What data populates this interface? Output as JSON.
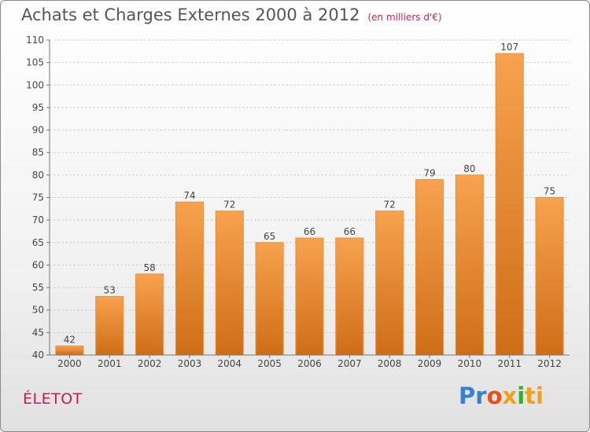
{
  "header": {
    "title": "Achats et Charges Externes 2000 à 2012",
    "unit": "(en milliers d'€)"
  },
  "footer": {
    "commune": "ÉLETOT",
    "brand_parts": [
      "Pr",
      "o",
      "x",
      "i",
      "ti"
    ]
  },
  "colors": {
    "bar_top": "#f7a24f",
    "bar_bottom": "#cf6d17",
    "commune_text": "#c8185a"
  },
  "chart_data": {
    "type": "bar",
    "title": "Achats et Charges Externes 2000 à 2012",
    "subtitle": "(en milliers d'€)",
    "categories": [
      "2000",
      "2001",
      "2002",
      "2003",
      "2004",
      "2005",
      "2006",
      "2007",
      "2008",
      "2009",
      "2010",
      "2011",
      "2012"
    ],
    "values": [
      42,
      53,
      58,
      74,
      72,
      65,
      66,
      66,
      72,
      79,
      80,
      107,
      75
    ],
    "ylim": [
      40,
      110
    ],
    "yticks": [
      40,
      45,
      50,
      55,
      60,
      65,
      70,
      75,
      80,
      85,
      90,
      95,
      100,
      105,
      110
    ],
    "grid": true,
    "xlabel": "",
    "ylabel": ""
  }
}
